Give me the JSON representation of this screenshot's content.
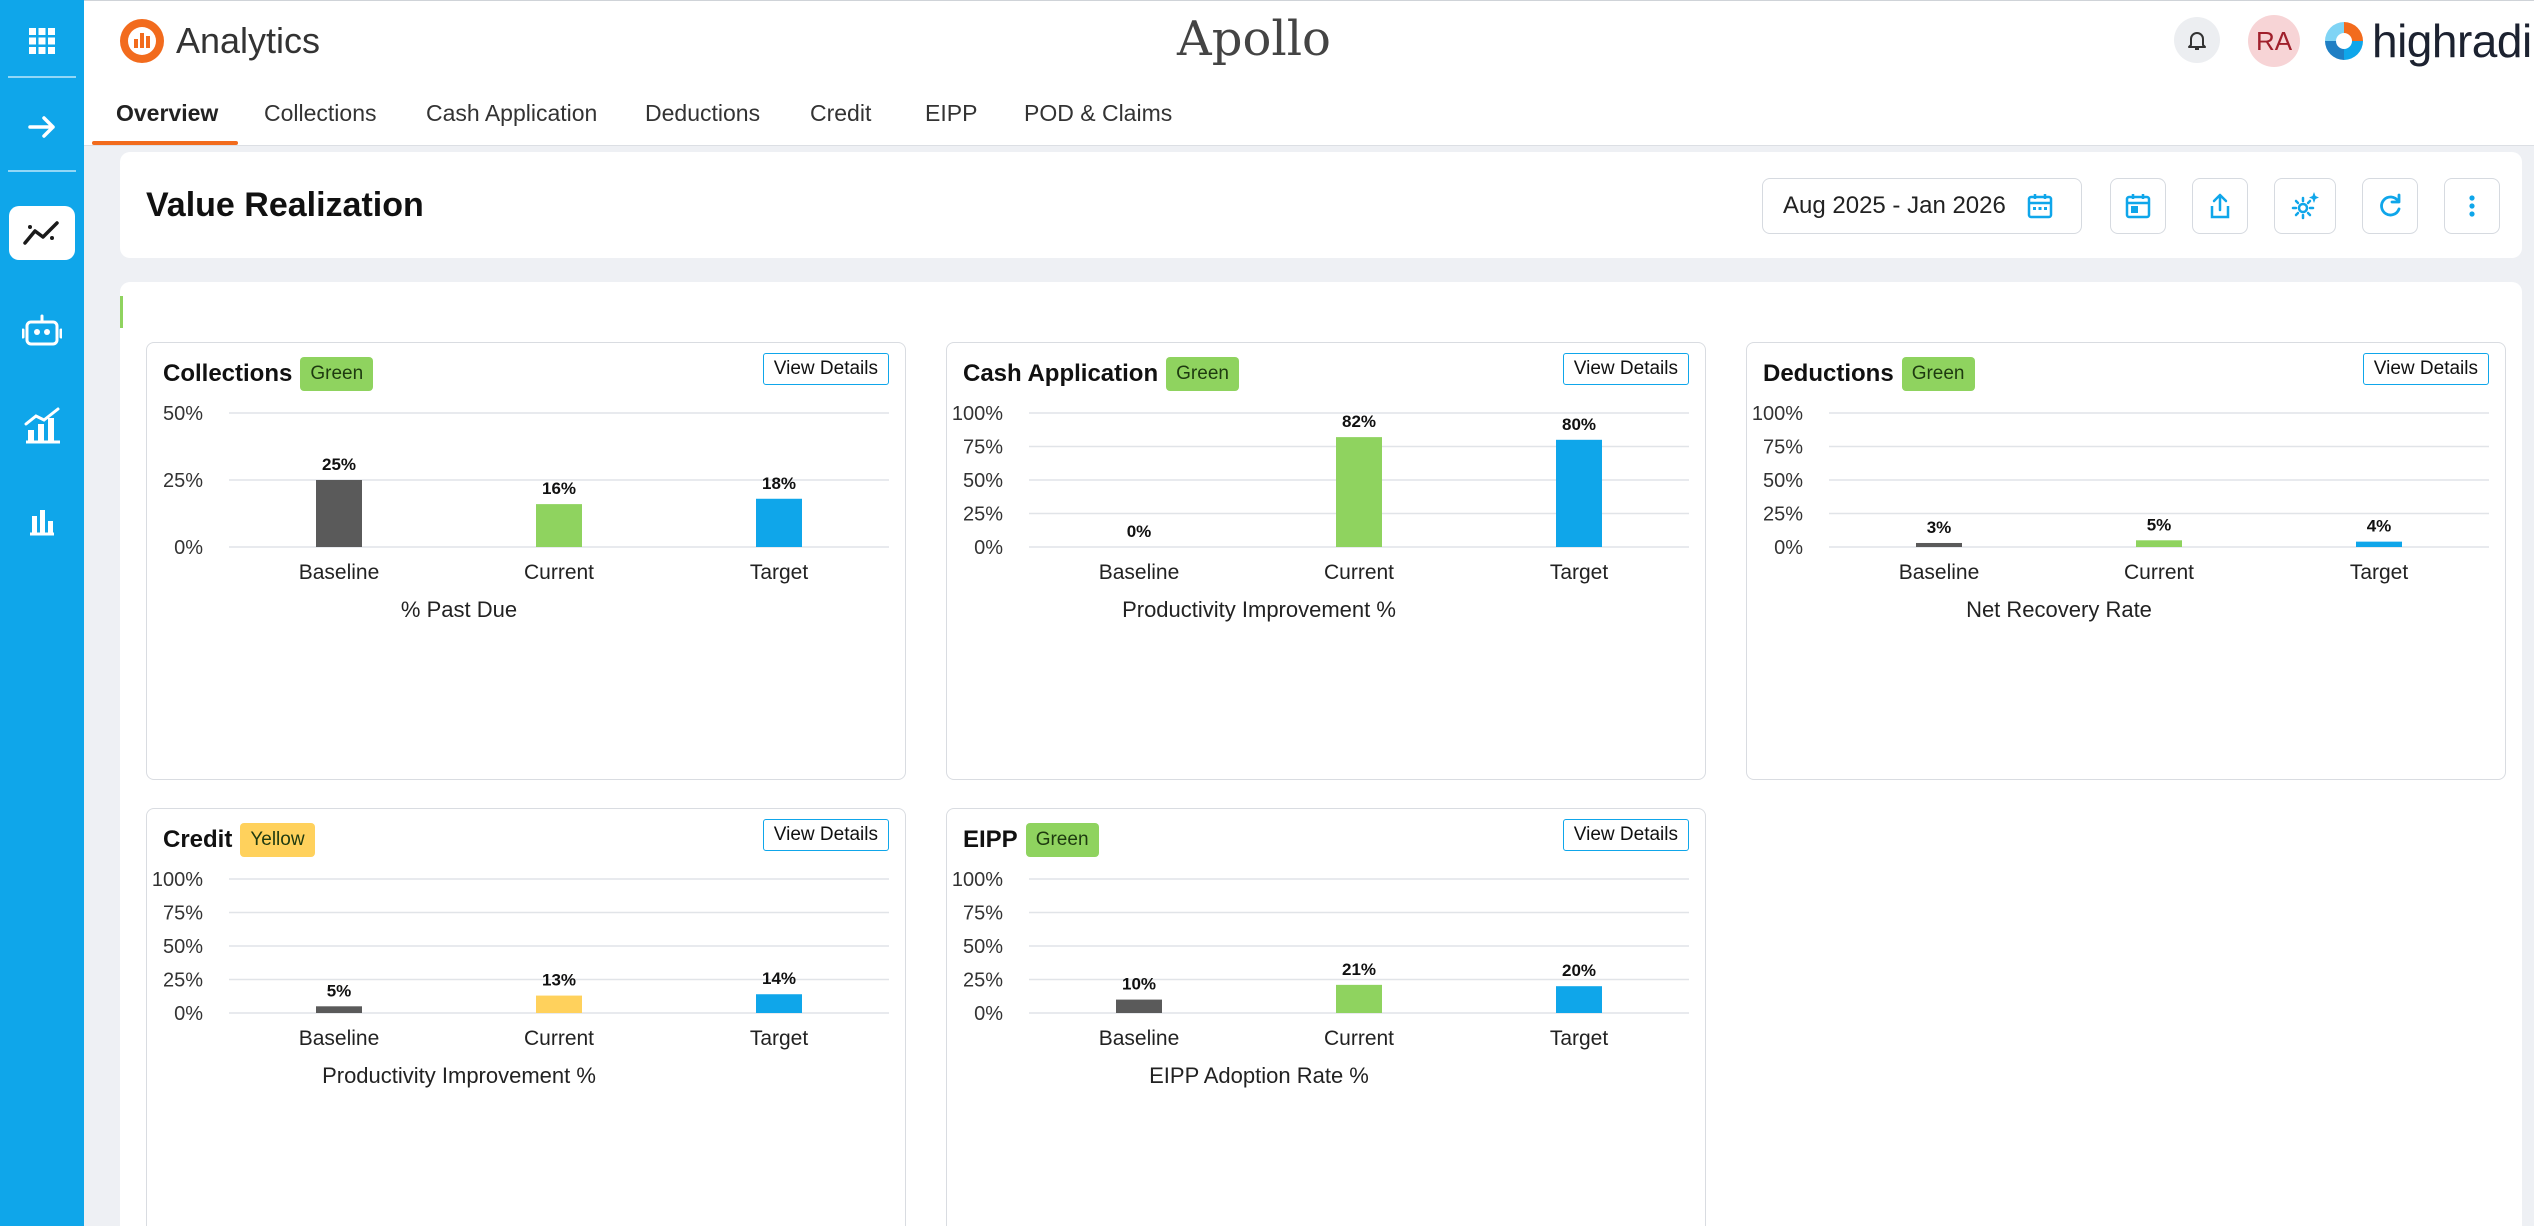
{
  "app": {
    "name": "Analytics",
    "product": "Apollo",
    "brand": "highradius",
    "user_initials": "RA"
  },
  "colors": {
    "rail": "#0fa6ea",
    "accent": "#f26b1d",
    "green": "#8fd35f",
    "yellow": "#ffd15c",
    "blue": "#0fa6ea",
    "baseline": "#5a5a5a"
  },
  "rail": {
    "icons": [
      "apps-grid-icon",
      "arrow-right-icon",
      "trend-line-icon",
      "robot-icon",
      "growth-chart-icon",
      "bar-chart-icon"
    ]
  },
  "tabs": [
    "Overview",
    "Collections",
    "Cash Application",
    "Deductions",
    "Credit",
    "EIPP",
    "POD & Claims"
  ],
  "header": {
    "title": "Value Realization",
    "date_range": "Aug 2025 - Jan 2026"
  },
  "view_details_label": "View Details",
  "chart_data": [
    {
      "type": "bar",
      "title": "Collections",
      "status": "Green",
      "xlabel": "% Past Due",
      "categories": [
        "Baseline",
        "Current",
        "Target"
      ],
      "values": [
        25,
        16,
        18
      ],
      "value_labels": [
        "25%",
        "16%",
        "18%"
      ],
      "ylim": [
        0,
        50
      ],
      "yticks": [
        "50%",
        "25%",
        "0%"
      ]
    },
    {
      "type": "bar",
      "title": "Cash Application",
      "status": "Green",
      "xlabel": "Productivity Improvement %",
      "categories": [
        "Baseline",
        "Current",
        "Target"
      ],
      "values": [
        0,
        82,
        80
      ],
      "value_labels": [
        "0%",
        "82%",
        "80%"
      ],
      "ylim": [
        0,
        100
      ],
      "yticks": [
        "100%",
        "75%",
        "50%",
        "25%",
        "0%"
      ]
    },
    {
      "type": "bar",
      "title": "Deductions",
      "status": "Green",
      "xlabel": "Net Recovery Rate",
      "categories": [
        "Baseline",
        "Current",
        "Target"
      ],
      "values": [
        3,
        5,
        4
      ],
      "value_labels": [
        "3%",
        "5%",
        "4%"
      ],
      "ylim": [
        0,
        100
      ],
      "yticks": [
        "100%",
        "75%",
        "50%",
        "25%",
        "0%"
      ]
    },
    {
      "type": "bar",
      "title": "Credit",
      "status": "Yellow",
      "xlabel": "Productivity Improvement %",
      "categories": [
        "Baseline",
        "Current",
        "Target"
      ],
      "values": [
        5,
        13,
        14
      ],
      "value_labels": [
        "5%",
        "13%",
        "14%"
      ],
      "ylim": [
        0,
        100
      ],
      "yticks": [
        "100%",
        "75%",
        "50%",
        "25%",
        "0%"
      ]
    },
    {
      "type": "bar",
      "title": "EIPP",
      "status": "Green",
      "xlabel": "EIPP Adoption Rate %",
      "categories": [
        "Baseline",
        "Current",
        "Target"
      ],
      "values": [
        10,
        21,
        20
      ],
      "value_labels": [
        "10%",
        "21%",
        "20%"
      ],
      "ylim": [
        0,
        100
      ],
      "yticks": [
        "100%",
        "75%",
        "50%",
        "25%",
        "0%"
      ]
    }
  ]
}
